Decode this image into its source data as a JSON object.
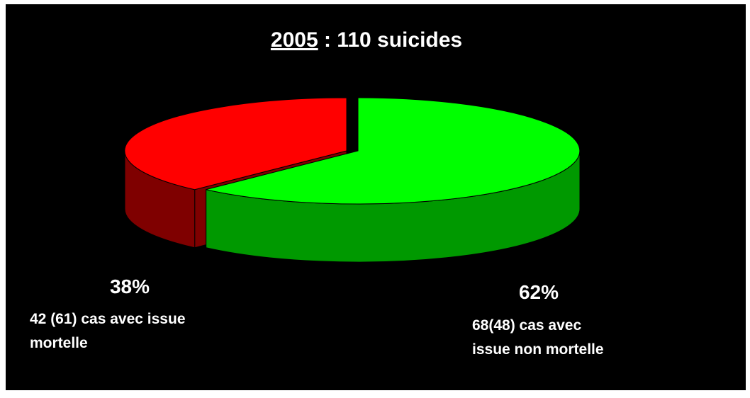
{
  "chart_data": {
    "type": "pie",
    "title_year": "2005",
    "title_rest": " : 110 suicides",
    "slices": [
      {
        "percent_label": "38%",
        "value": 38,
        "color_top": "#ff0000",
        "color_side": "#7f0000",
        "description_lines": [
          "42 (61) cas avec issue",
          "mortelle"
        ]
      },
      {
        "percent_label": "62%",
        "value": 62,
        "color_top": "#00ff00",
        "color_side": "#009900",
        "description_lines": [
          "68(48) cas avec",
          "issue non mortelle"
        ]
      }
    ]
  }
}
